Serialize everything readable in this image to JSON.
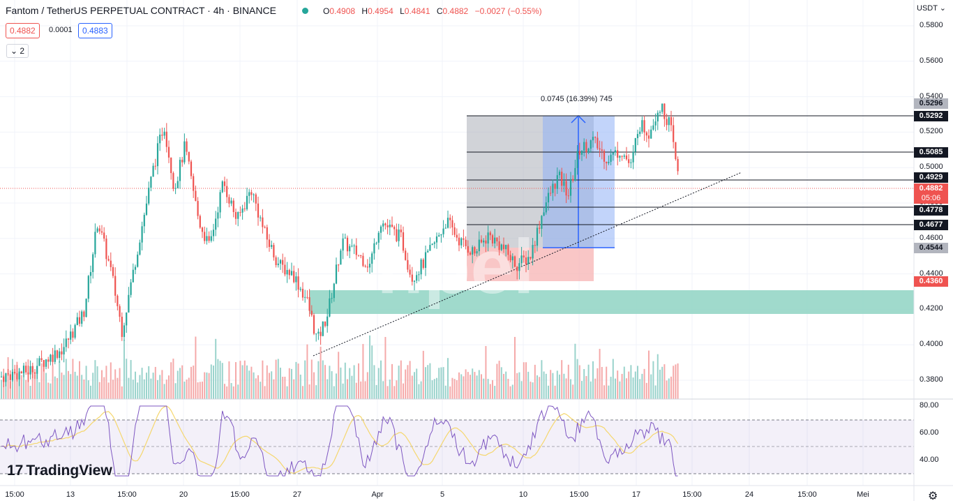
{
  "header": {
    "title": "Fantom / TetherUS PERPETUAL CONTRACT · 4h · BINANCE",
    "ohlc": {
      "o_label": "O",
      "o": "0.4908",
      "h_label": "H",
      "h": "0.4954",
      "l_label": "L",
      "l": "0.4841",
      "c_label": "C",
      "c": "0.4882",
      "change": "−0.0027 (−0.55%)"
    },
    "bid": "0.4882",
    "spread": "0.0001",
    "ask": "0.4883",
    "indicator_toggle": "2"
  },
  "currency": "USDT",
  "price_axis": [
    "0.5800",
    "0.5600",
    "0.5400",
    "0.5200",
    "0.5000",
    "0.4800",
    "0.4600",
    "0.4400",
    "0.4200",
    "0.4000",
    "0.3800"
  ],
  "price_labels": [
    {
      "value": "0.5296",
      "style": "gray"
    },
    {
      "value": "0.5292",
      "style": "black"
    },
    {
      "value": "0.5085",
      "style": "black"
    },
    {
      "value": "0.4929",
      "style": "black"
    },
    {
      "value": "0.4882",
      "style": "red"
    },
    {
      "value": "05:06",
      "style": "red-sub"
    },
    {
      "value": "0.4778",
      "style": "black"
    },
    {
      "value": "0.4677",
      "style": "black"
    },
    {
      "value": "0.4544",
      "style": "gray"
    },
    {
      "value": "0.4360",
      "style": "red"
    }
  ],
  "measure_label": "0.0745 (16.39%) 745",
  "rsi_axis": [
    "80.00",
    "60.00",
    "40.00"
  ],
  "time_axis": [
    "15:00",
    "13",
    "15:00",
    "20",
    "15:00",
    "27",
    "Apr",
    "5",
    "10",
    "15:00",
    "17",
    "15:00",
    "24",
    "15:00",
    "Mei"
  ],
  "logo_text": "TradingView",
  "colors": {
    "up": "#26a69a",
    "down": "#ef5350",
    "accent": "#2962ff",
    "rsi": "#7e57c2",
    "rsi_ma": "#f5d76e",
    "zone": "#8fd3c3"
  },
  "icons": {
    "live": "green-dot-icon",
    "logo": "tradingview-logo-icon",
    "settings": "gear-icon",
    "collapse": "chevron-down-icon"
  }
}
